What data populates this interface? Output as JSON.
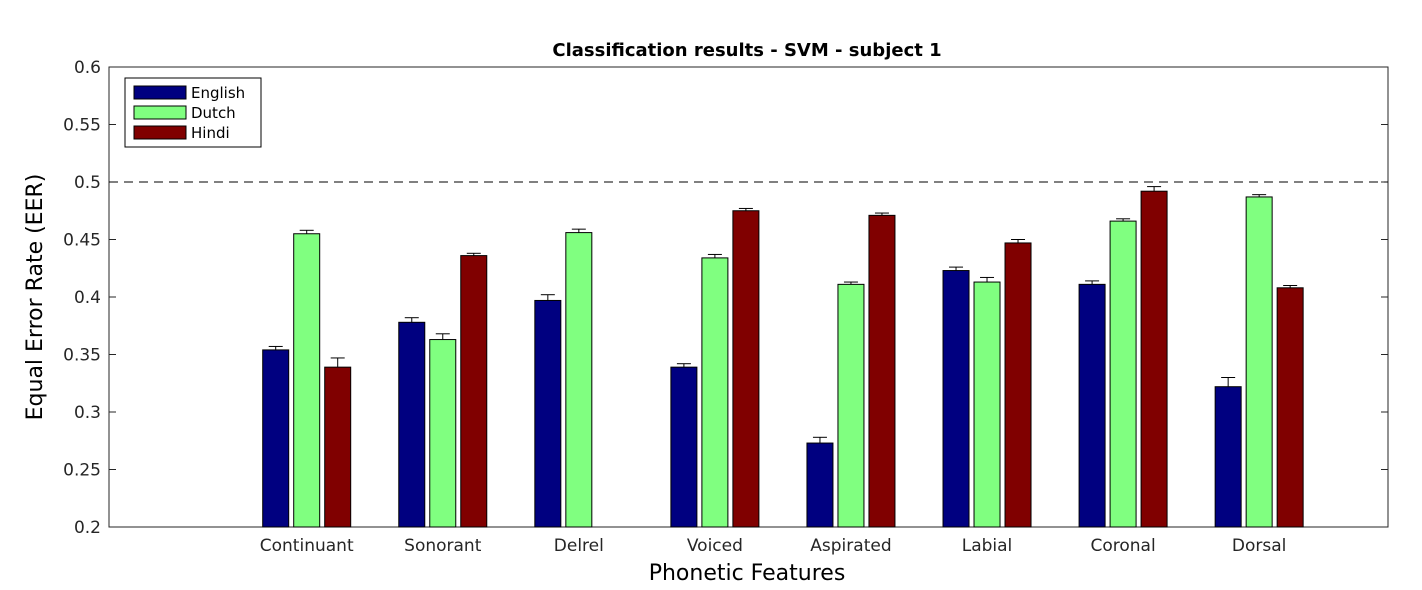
{
  "chart_data": {
    "type": "bar",
    "title": "Classification results - SVM - subject 1",
    "xlabel": "Phonetic Features",
    "ylabel": "Equal Error Rate (EER)",
    "ylim": [
      0.2,
      0.6
    ],
    "yticks": [
      "0.2",
      "0.25",
      "0.3",
      "0.35",
      "0.4",
      "0.45",
      "0.5",
      "0.55",
      "0.6"
    ],
    "categories": [
      "Continuant",
      "Sonorant",
      "Delrel",
      "Voiced",
      "Aspirated",
      "Labial",
      "Coronal",
      "Dorsal"
    ],
    "series": [
      {
        "name": "English",
        "color": "#000080",
        "values": [
          0.354,
          0.378,
          0.397,
          0.339,
          0.273,
          0.423,
          0.411,
          0.322
        ],
        "errors": [
          0.003,
          0.004,
          0.005,
          0.003,
          0.005,
          0.003,
          0.003,
          0.008
        ]
      },
      {
        "name": "Dutch",
        "color": "#80ff80",
        "values": [
          0.455,
          0.363,
          0.456,
          0.434,
          0.411,
          0.413,
          0.466,
          0.487
        ],
        "errors": [
          0.003,
          0.005,
          0.003,
          0.003,
          0.002,
          0.004,
          0.002,
          0.002
        ]
      },
      {
        "name": "Hindi",
        "color": "#800000",
        "values": [
          0.339,
          0.436,
          null,
          0.475,
          0.471,
          0.447,
          0.492,
          0.408
        ],
        "errors": [
          0.008,
          0.002,
          null,
          0.002,
          0.002,
          0.003,
          0.004,
          0.002
        ]
      }
    ],
    "reference_line": 0.5,
    "legend_position": "top-left",
    "grid": false
  }
}
